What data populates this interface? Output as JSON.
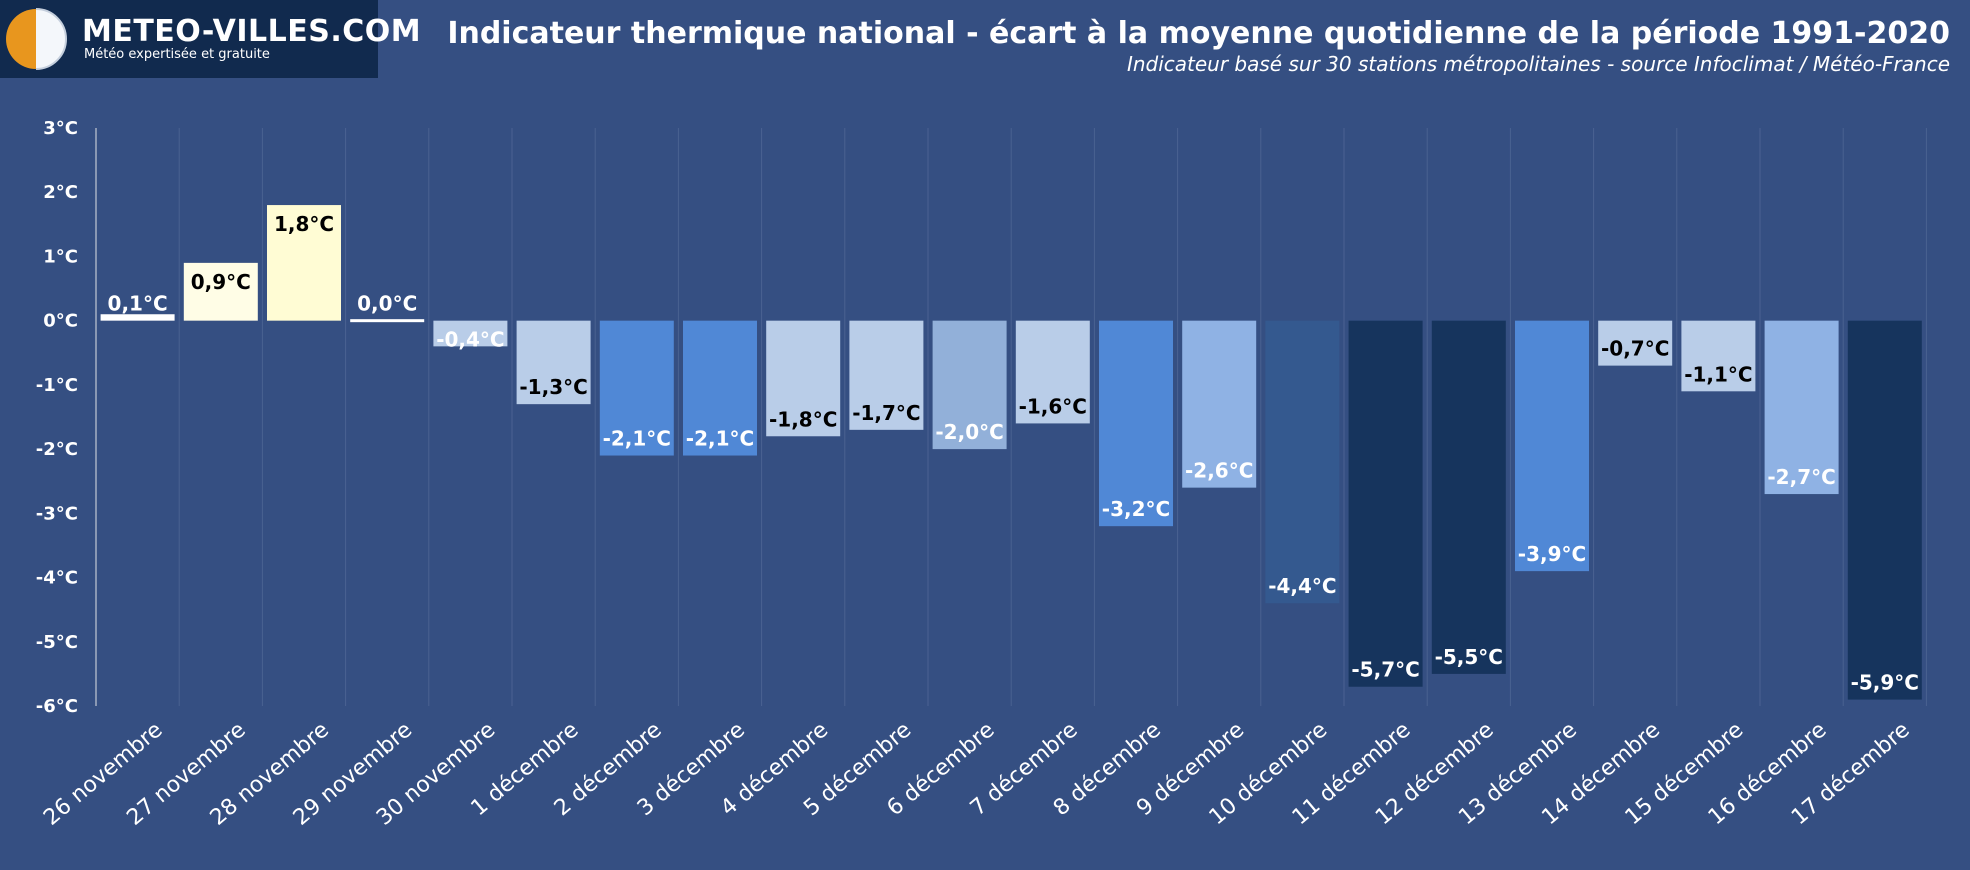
{
  "brand": {
    "name": "METEO-VILLES.COM",
    "tagline": "Météo expertisée et gratuite"
  },
  "header": {
    "title": "Indicateur thermique national - écart à la moyenne quotidienne de la période 1991-2020",
    "subtitle": "Indicateur basé sur 30 stations métropolitaines - source Infoclimat / Météo-France"
  },
  "colors": {
    "background": "#354f82",
    "logo_background": "#112a4e",
    "logo_orange": "#e8961e"
  },
  "chart_data": {
    "type": "bar",
    "title": "Indicateur thermique national - écart à la moyenne quotidienne de la période 1991-2020",
    "subtitle": "Indicateur basé sur 30 stations métropolitaines - source Infoclimat / Météo-France",
    "xlabel": "",
    "ylabel": "",
    "ylim": [
      -6,
      3
    ],
    "yticks": [
      3,
      2,
      1,
      0,
      -1,
      -2,
      -3,
      -4,
      -5,
      -6
    ],
    "ytick_labels": [
      "3°C",
      "2°C",
      "1°C",
      "0°C",
      "-1°C",
      "-2°C",
      "-3°C",
      "-4°C",
      "-5°C",
      "-6°C"
    ],
    "grid": "vertical",
    "categories": [
      "26 novembre",
      "27 novembre",
      "28 novembre",
      "29 novembre",
      "30 novembre",
      "1 décembre",
      "2 décembre",
      "3 décembre",
      "4 décembre",
      "5 décembre",
      "6 décembre",
      "7 décembre",
      "8 décembre",
      "9 décembre",
      "10 décembre",
      "11 décembre",
      "12 décembre",
      "13 décembre",
      "14 décembre",
      "15 décembre",
      "16 décembre",
      "17 décembre"
    ],
    "values": [
      0.1,
      0.9,
      1.8,
      0.0,
      -0.4,
      -1.3,
      -2.1,
      -2.1,
      -1.8,
      -1.7,
      -2.0,
      -1.6,
      -3.2,
      -2.6,
      -4.4,
      -5.7,
      -5.5,
      -3.9,
      -0.7,
      -1.1,
      -2.7,
      -5.9
    ],
    "labels": [
      "0,1°C",
      "0,9°C",
      "1,8°C",
      "0,0°C",
      "-0,4°C",
      "-1,3°C",
      "-2,1°C",
      "-2,1°C",
      "-1,8°C",
      "-1,7°C",
      "-2,0°C",
      "-1,6°C",
      "-3,2°C",
      "-2,6°C",
      "-4,4°C",
      "-5,7°C",
      "-5,5°C",
      "-3,9°C",
      "-0,7°C",
      "-1,1°C",
      "-2,7°C",
      "-5,9°C"
    ],
    "bar_colors": [
      "#ffffff",
      "#fffde6",
      "#fffcd4",
      "#ffffff",
      "#b9cde8",
      "#b9cde8",
      "#5088d6",
      "#5088d6",
      "#b9cde8",
      "#b9cde8",
      "#92b0d9",
      "#b9cde8",
      "#5088d6",
      "#8fb2e4",
      "#34598f",
      "#16345d",
      "#16345d",
      "#5088d6",
      "#b9cde8",
      "#b9cde8",
      "#8fb2e4",
      "#16345d"
    ],
    "label_colors": [
      "#ffffff",
      "#000000",
      "#000000",
      "#ffffff",
      "#ffffff",
      "#000000",
      "#ffffff",
      "#ffffff",
      "#000000",
      "#000000",
      "#ffffff",
      "#000000",
      "#ffffff",
      "#ffffff",
      "#ffffff",
      "#ffffff",
      "#ffffff",
      "#ffffff",
      "#000000",
      "#000000",
      "#ffffff",
      "#ffffff"
    ],
    "axis_color": "#8a98b3",
    "grid_color": "#4a6291"
  }
}
